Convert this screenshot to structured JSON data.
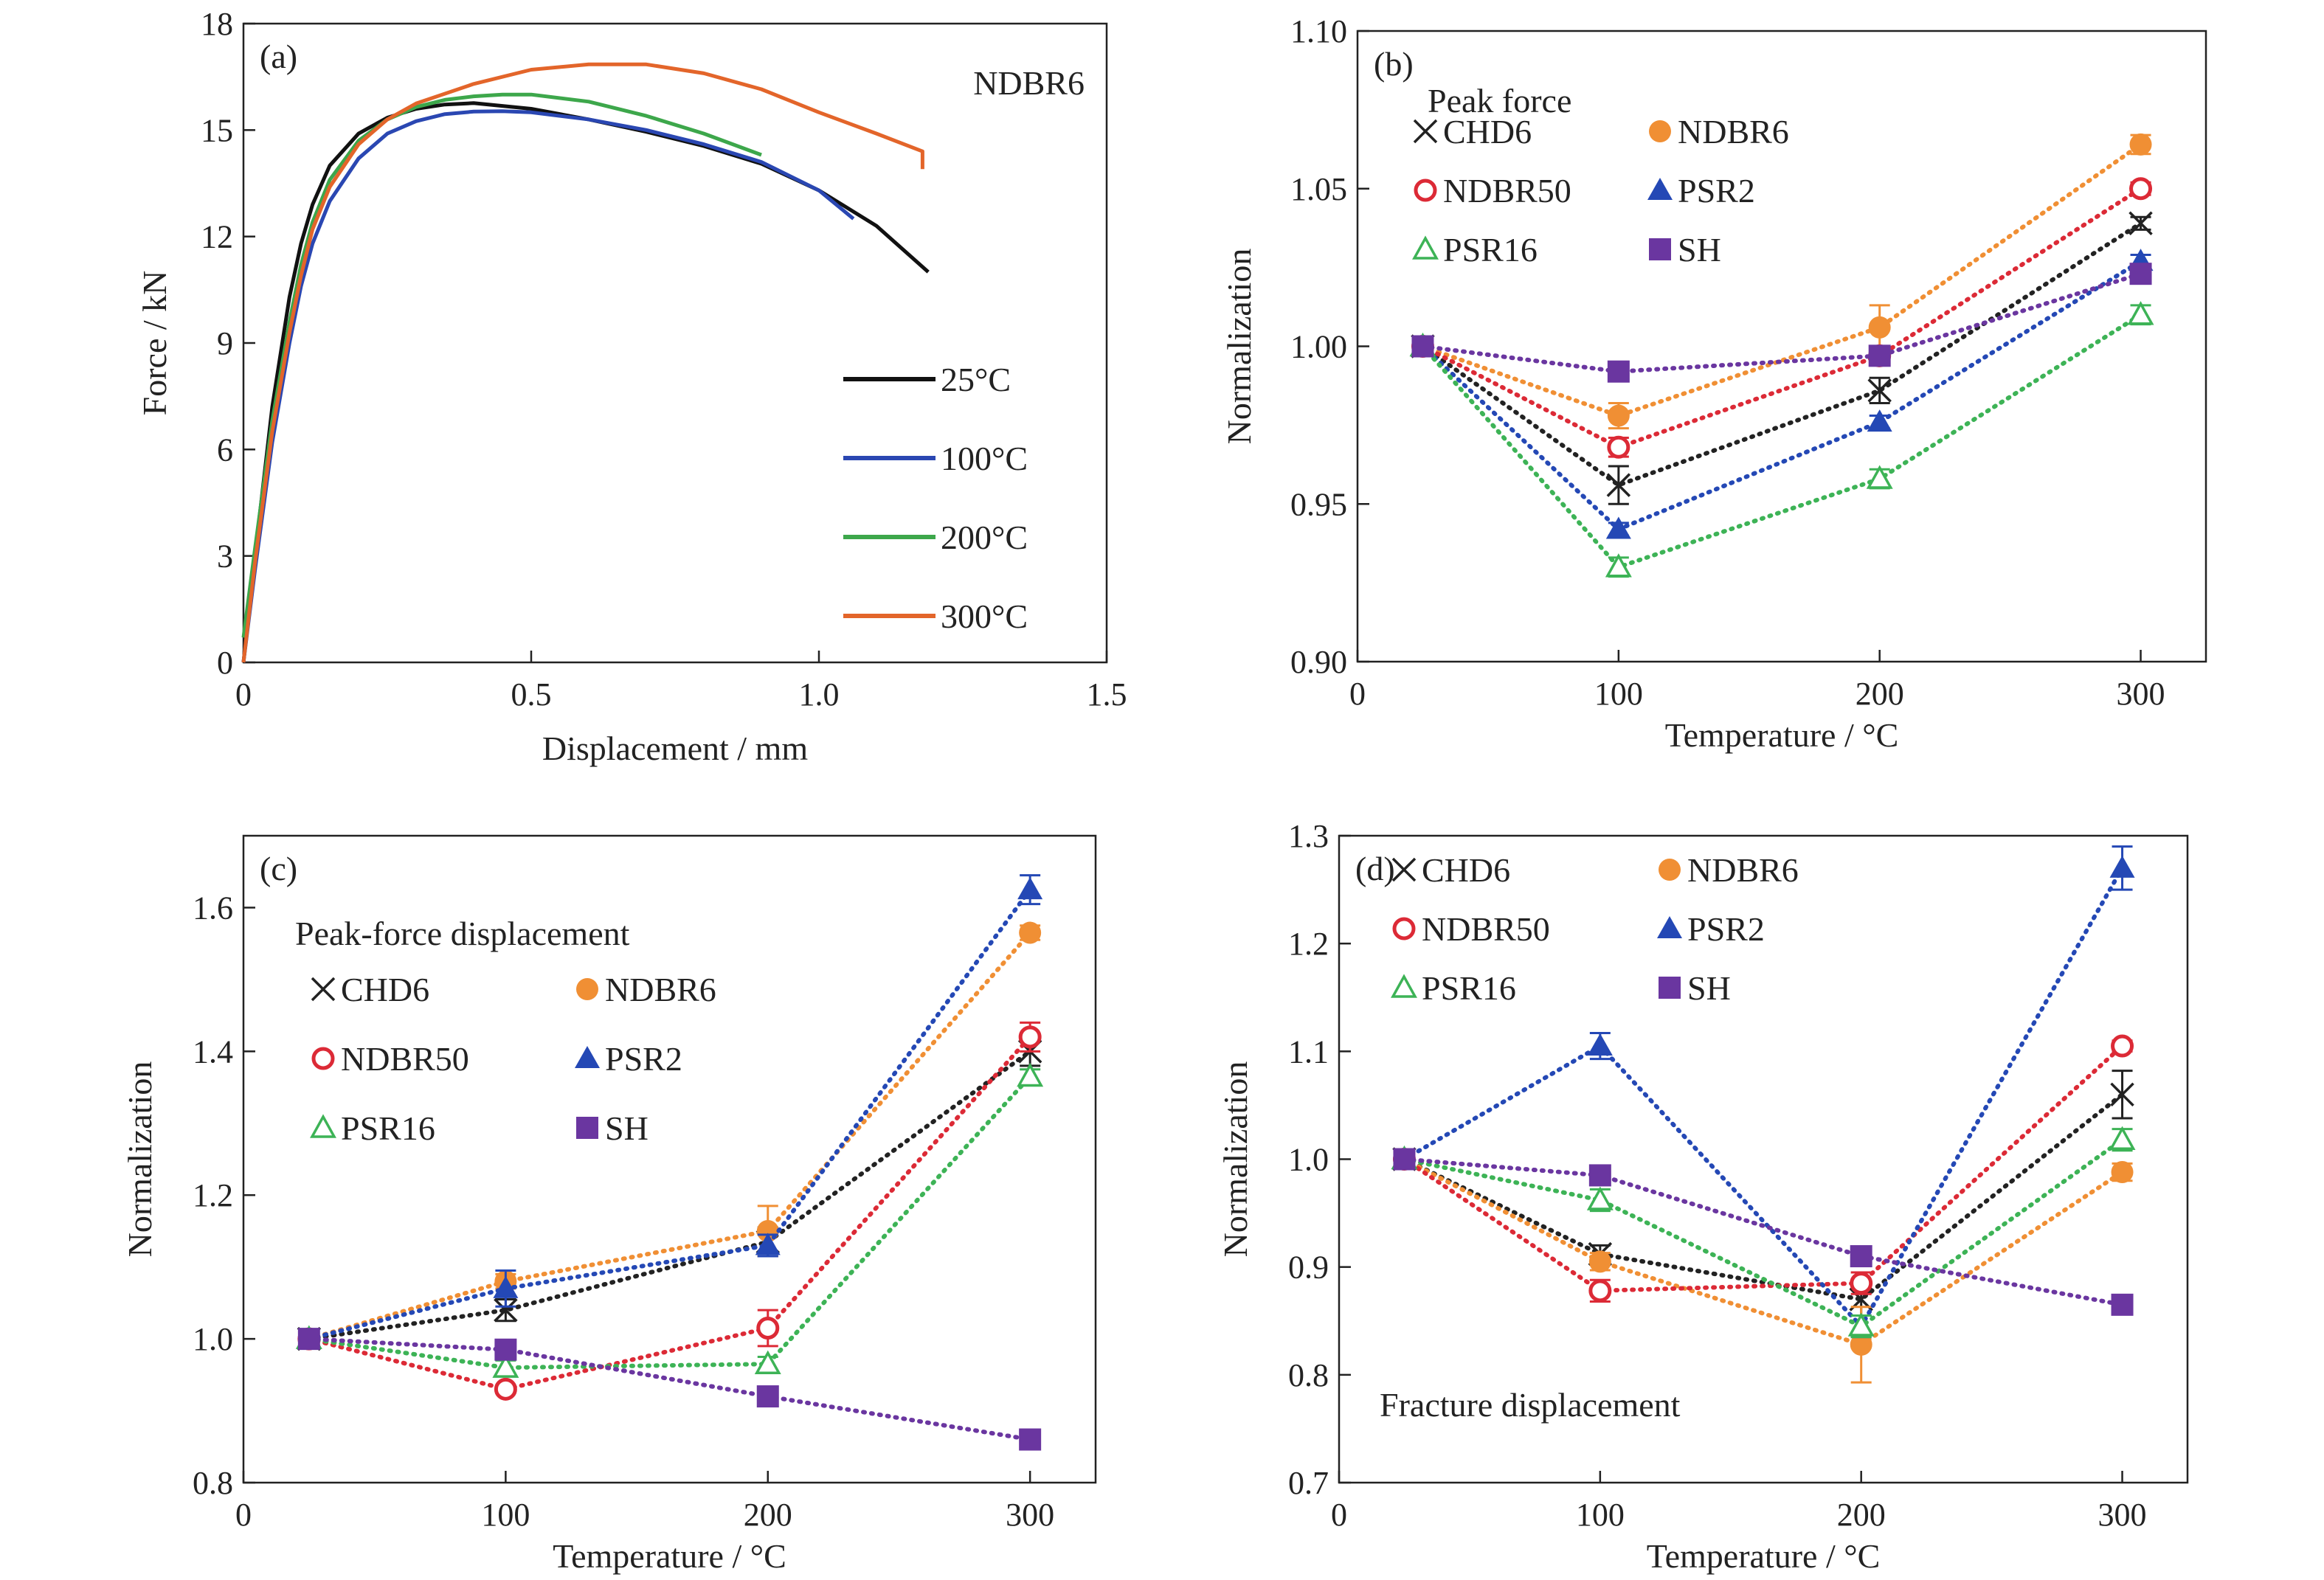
{
  "colors": {
    "t25": "#111111",
    "t100": "#2a47b2",
    "t200": "#3da74b",
    "t300": "#e3652a",
    "CHD6": "#222222",
    "NDBR6": "#f08f34",
    "NDBR50": "#dc2a36",
    "PSR2": "#2448b5",
    "PSR16": "#3db356",
    "SH": "#6a36a0"
  },
  "chart_data": [
    {
      "panel_label": "(a)",
      "type": "line",
      "title": "NDBR6",
      "xlabel": "Displacement / mm",
      "ylabel": "Force / kN",
      "xlim": [
        0,
        1.5
      ],
      "ylim": [
        0,
        18
      ],
      "xticks": [
        "0",
        "0.5",
        "1.0",
        "1.5"
      ],
      "yticks": [
        "0",
        "3",
        "6",
        "9",
        "12",
        "15",
        "18"
      ],
      "legend_position": "right",
      "series": [
        {
          "name": "25°C",
          "color_key": "t25",
          "x": [
            0,
            0.02,
            0.05,
            0.08,
            0.1,
            0.12,
            0.15,
            0.2,
            0.25,
            0.3,
            0.35,
            0.4,
            0.5,
            0.6,
            0.7,
            0.8,
            0.9,
            1.0,
            1.1,
            1.19
          ],
          "y": [
            0,
            3.0,
            7.2,
            10.3,
            11.8,
            12.9,
            14.0,
            14.9,
            15.35,
            15.6,
            15.72,
            15.76,
            15.6,
            15.3,
            14.95,
            14.55,
            14.05,
            13.3,
            12.3,
            11.0
          ]
        },
        {
          "name": "100°C",
          "color_key": "t100",
          "x": [
            0,
            0.02,
            0.05,
            0.08,
            0.1,
            0.12,
            0.15,
            0.2,
            0.25,
            0.3,
            0.35,
            0.4,
            0.45,
            0.5,
            0.6,
            0.7,
            0.8,
            0.9,
            1.0,
            1.06
          ],
          "y": [
            0,
            2.6,
            6.2,
            9.0,
            10.6,
            11.8,
            13.0,
            14.2,
            14.9,
            15.25,
            15.45,
            15.52,
            15.53,
            15.5,
            15.3,
            15.0,
            14.6,
            14.1,
            13.3,
            12.5
          ]
        },
        {
          "name": "200°C",
          "color_key": "t200",
          "x": [
            0,
            0.02,
            0.05,
            0.08,
            0.1,
            0.12,
            0.15,
            0.2,
            0.25,
            0.3,
            0.35,
            0.4,
            0.45,
            0.5,
            0.6,
            0.7,
            0.8,
            0.9
          ],
          "y": [
            0.7,
            3.2,
            6.8,
            9.6,
            11.2,
            12.4,
            13.6,
            14.7,
            15.3,
            15.65,
            15.85,
            15.95,
            16.0,
            16.0,
            15.8,
            15.4,
            14.9,
            14.3
          ]
        },
        {
          "name": "300°C",
          "color_key": "t300",
          "x": [
            0,
            0.02,
            0.05,
            0.08,
            0.1,
            0.12,
            0.15,
            0.2,
            0.25,
            0.3,
            0.4,
            0.5,
            0.6,
            0.7,
            0.8,
            0.9,
            1.0,
            1.1,
            1.18,
            1.18
          ],
          "y": [
            0,
            2.8,
            6.5,
            9.3,
            10.9,
            12.2,
            13.4,
            14.6,
            15.3,
            15.75,
            16.3,
            16.7,
            16.85,
            16.85,
            16.6,
            16.15,
            15.5,
            14.9,
            14.4,
            13.9
          ]
        }
      ]
    },
    {
      "panel_label": "(b)",
      "type": "line",
      "title": "Peak force",
      "xlabel": "Temperature / °C",
      "ylabel": "Normalization",
      "xlim": [
        0,
        325
      ],
      "ylim": [
        0.9,
        1.1
      ],
      "xticks": [
        "0",
        "100",
        "200",
        "300"
      ],
      "yticks": [
        "0.90",
        "0.95",
        "1.00",
        "1.05",
        "1.10"
      ],
      "legend_position": "top-left",
      "x": [
        25,
        100,
        200,
        300
      ],
      "series": [
        {
          "name": "CHD6",
          "marker": "x",
          "color_key": "CHD6",
          "values": [
            1.0,
            0.956,
            0.986,
            1.039
          ],
          "errors": [
            0,
            0.006,
            0.004,
            0.002
          ]
        },
        {
          "name": "NDBR6",
          "marker": "circle",
          "color_key": "NDBR6",
          "values": [
            1.0,
            0.978,
            1.006,
            1.064
          ],
          "errors": [
            0,
            0.004,
            0.007,
            0.003
          ]
        },
        {
          "name": "NDBR50",
          "marker": "circle-open",
          "color_key": "NDBR50",
          "values": [
            1.0,
            0.968,
            0.997,
            1.05
          ],
          "errors": [
            0,
            0.003,
            0.003,
            0.002
          ]
        },
        {
          "name": "PSR2",
          "marker": "triangle",
          "color_key": "PSR2",
          "values": [
            1.0,
            0.942,
            0.976,
            1.027
          ],
          "errors": [
            0,
            0.002,
            0.002,
            0.002
          ]
        },
        {
          "name": "PSR16",
          "marker": "triangle-open",
          "color_key": "PSR16",
          "values": [
            1.0,
            0.93,
            0.958,
            1.01
          ],
          "errors": [
            0,
            0.003,
            0.003,
            0.003
          ]
        },
        {
          "name": "SH",
          "marker": "square",
          "color_key": "SH",
          "values": [
            1.0,
            0.992,
            0.997,
            1.023
          ],
          "errors": [
            0,
            0,
            0,
            0
          ]
        }
      ]
    },
    {
      "panel_label": "(c)",
      "type": "line",
      "title": "Peak-force displacement",
      "xlabel": "Temperature / °C",
      "ylabel": "Normalization",
      "xlim": [
        0,
        325
      ],
      "ylim": [
        0.8,
        1.7
      ],
      "xticks": [
        "0",
        "100",
        "200",
        "300"
      ],
      "yticks": [
        "0.8",
        "1.0",
        "1.2",
        "1.4",
        "1.6"
      ],
      "legend_position": "top-left",
      "x": [
        25,
        100,
        200,
        300
      ],
      "series": [
        {
          "name": "CHD6",
          "marker": "x",
          "color_key": "CHD6",
          "values": [
            1.0,
            1.04,
            1.135,
            1.4
          ],
          "errors": [
            0,
            0.015,
            0.02,
            0.02
          ]
        },
        {
          "name": "NDBR6",
          "marker": "circle",
          "color_key": "NDBR6",
          "values": [
            1.0,
            1.08,
            1.15,
            1.565
          ],
          "errors": [
            0,
            0.01,
            0.035,
            0.01
          ]
        },
        {
          "name": "NDBR50",
          "marker": "circle-open",
          "color_key": "NDBR50",
          "values": [
            1.0,
            0.93,
            1.015,
            1.42
          ],
          "errors": [
            0,
            0.005,
            0.025,
            0.02
          ]
        },
        {
          "name": "PSR2",
          "marker": "triangle",
          "color_key": "PSR2",
          "values": [
            1.0,
            1.07,
            1.13,
            1.625
          ],
          "errors": [
            0,
            0.025,
            0.015,
            0.02
          ]
        },
        {
          "name": "PSR16",
          "marker": "triangle-open",
          "color_key": "PSR16",
          "values": [
            1.0,
            0.96,
            0.965,
            1.365
          ],
          "errors": [
            0,
            0.01,
            0.01,
            0.01
          ]
        },
        {
          "name": "SH",
          "marker": "square",
          "color_key": "SH",
          "values": [
            1.0,
            0.985,
            0.92,
            0.86
          ],
          "errors": [
            0,
            0,
            0,
            0
          ]
        }
      ]
    },
    {
      "panel_label": "(d)",
      "type": "line",
      "title": "Fracture displacement",
      "xlabel": "Temperature / °C",
      "ylabel": "Normalization",
      "xlim": [
        0,
        325
      ],
      "ylim": [
        0.7,
        1.3
      ],
      "xticks": [
        "0",
        "100",
        "200",
        "300"
      ],
      "yticks": [
        "0.7",
        "0.8",
        "0.9",
        "1.0",
        "1.1",
        "1.2",
        "1.3"
      ],
      "legend_position": "top-left",
      "x": [
        25,
        100,
        200,
        300
      ],
      "series": [
        {
          "name": "CHD6",
          "marker": "x",
          "color_key": "CHD6",
          "values": [
            1.0,
            0.912,
            0.87,
            1.06
          ],
          "errors": [
            0,
            0.008,
            0.015,
            0.022
          ]
        },
        {
          "name": "NDBR6",
          "marker": "circle",
          "color_key": "NDBR6",
          "values": [
            1.0,
            0.905,
            0.828,
            0.988
          ],
          "errors": [
            0,
            0.008,
            0.035,
            0.008
          ]
        },
        {
          "name": "NDBR50",
          "marker": "circle-open",
          "color_key": "NDBR50",
          "values": [
            1.0,
            0.878,
            0.885,
            1.105
          ],
          "errors": [
            0,
            0.01,
            0.01,
            0.005
          ]
        },
        {
          "name": "PSR2",
          "marker": "triangle",
          "color_key": "PSR2",
          "values": [
            1.0,
            1.105,
            0.845,
            1.27
          ],
          "errors": [
            0,
            0.012,
            0.01,
            0.02
          ]
        },
        {
          "name": "PSR16",
          "marker": "triangle-open",
          "color_key": "PSR16",
          "values": [
            1.0,
            0.962,
            0.845,
            1.018
          ],
          "errors": [
            0,
            0.01,
            0.01,
            0.01
          ]
        },
        {
          "name": "SH",
          "marker": "square",
          "color_key": "SH",
          "values": [
            1.0,
            0.985,
            0.91,
            0.865
          ],
          "errors": [
            0,
            0,
            0,
            0
          ]
        }
      ]
    }
  ]
}
